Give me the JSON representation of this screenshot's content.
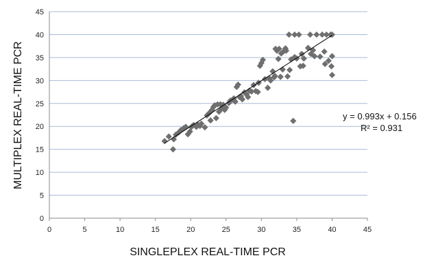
{
  "chart_data": {
    "type": "scatter",
    "title": "",
    "xlabel": "SINGLEPLEX REAL-TIME PCR",
    "ylabel": "MULTIPLEX REAL-TIME PCR",
    "xlim": [
      0,
      45
    ],
    "ylim": [
      0,
      45
    ],
    "x_ticks": [
      0,
      5,
      10,
      15,
      20,
      25,
      30,
      35,
      40,
      45
    ],
    "y_ticks": [
      0,
      5,
      10,
      15,
      20,
      25,
      30,
      35,
      40,
      45
    ],
    "grid": "horizontal",
    "marker": "diamond",
    "colors": {
      "points": "#6f6f6f",
      "trendline": "#000000",
      "grid": "#a9bcd6",
      "axis": "#8a8a8a"
    },
    "trendline": {
      "type": "linear",
      "slope": 0.993,
      "intercept": 0.156,
      "x_range": [
        16.3,
        40.0
      ]
    },
    "annotations": {
      "equation": "y = 0.993x + 0.156",
      "r_squared": "R² = 0.931"
    },
    "series": [
      {
        "points": [
          [
            16.3,
            16.8
          ],
          [
            16.9,
            17.8
          ],
          [
            17.5,
            15.0
          ],
          [
            17.6,
            17.2
          ],
          [
            17.9,
            18.2
          ],
          [
            18.3,
            18.7
          ],
          [
            18.6,
            19.2
          ],
          [
            19.0,
            19.6
          ],
          [
            19.3,
            19.9
          ],
          [
            19.6,
            18.3
          ],
          [
            19.9,
            18.9
          ],
          [
            20.1,
            19.9
          ],
          [
            20.4,
            20.3
          ],
          [
            20.8,
            19.9
          ],
          [
            21.0,
            20.4
          ],
          [
            21.3,
            20.1
          ],
          [
            21.5,
            20.6
          ],
          [
            22.0,
            19.8
          ],
          [
            22.3,
            22.4
          ],
          [
            22.6,
            22.9
          ],
          [
            22.8,
            21.3
          ],
          [
            23.0,
            23.6
          ],
          [
            23.2,
            24.2
          ],
          [
            23.4,
            24.6
          ],
          [
            23.6,
            21.8
          ],
          [
            23.8,
            24.8
          ],
          [
            24.0,
            23.2
          ],
          [
            24.2,
            24.8
          ],
          [
            24.4,
            23.9
          ],
          [
            24.6,
            24.7
          ],
          [
            24.8,
            23.6
          ],
          [
            25.0,
            24.1
          ],
          [
            25.4,
            25.1
          ],
          [
            25.6,
            25.6
          ],
          [
            25.9,
            25.8
          ],
          [
            26.1,
            26.1
          ],
          [
            26.3,
            25.4
          ],
          [
            26.5,
            28.6
          ],
          [
            26.7,
            29.1
          ],
          [
            26.9,
            26.4
          ],
          [
            27.1,
            26.6
          ],
          [
            27.3,
            25.9
          ],
          [
            27.6,
            27.4
          ],
          [
            27.9,
            27.0
          ],
          [
            28.1,
            26.4
          ],
          [
            28.3,
            27.8
          ],
          [
            28.6,
            27.6
          ],
          [
            28.9,
            29.0
          ],
          [
            29.2,
            27.7
          ],
          [
            29.5,
            27.5
          ],
          [
            29.6,
            29.5
          ],
          [
            29.8,
            33.2
          ],
          [
            30.0,
            33.8
          ],
          [
            30.2,
            34.5
          ],
          [
            30.5,
            30.3
          ],
          [
            30.9,
            28.4
          ],
          [
            31.1,
            30.5
          ],
          [
            31.3,
            30.0
          ],
          [
            31.6,
            32.0
          ],
          [
            31.8,
            30.7
          ],
          [
            31.9,
            31.0
          ],
          [
            32.0,
            36.9
          ],
          [
            32.2,
            36.5
          ],
          [
            32.4,
            34.7
          ],
          [
            32.5,
            36.9
          ],
          [
            32.7,
            30.8
          ],
          [
            32.8,
            35.9
          ],
          [
            33.0,
            32.4
          ],
          [
            33.1,
            36.3
          ],
          [
            33.4,
            37.0
          ],
          [
            33.5,
            36.5
          ],
          [
            33.7,
            30.9
          ],
          [
            33.9,
            40.0
          ],
          [
            34.0,
            32.3
          ],
          [
            34.2,
            34.6
          ],
          [
            34.5,
            21.2
          ],
          [
            34.7,
            40.0
          ],
          [
            34.7,
            35.1
          ],
          [
            35.0,
            34.8
          ],
          [
            35.3,
            40.0
          ],
          [
            35.5,
            33.1
          ],
          [
            35.7,
            35.8
          ],
          [
            35.9,
            33.2
          ],
          [
            36.0,
            34.8
          ],
          [
            36.6,
            37.1
          ],
          [
            36.9,
            40.0
          ],
          [
            37.0,
            35.8
          ],
          [
            37.3,
            36.6
          ],
          [
            37.5,
            35.3
          ],
          [
            37.8,
            40.0
          ],
          [
            38.3,
            35.2
          ],
          [
            38.6,
            40.0
          ],
          [
            38.9,
            36.3
          ],
          [
            39.0,
            33.6
          ],
          [
            39.2,
            40.0
          ],
          [
            39.5,
            34.3
          ],
          [
            39.8,
            40.0
          ],
          [
            39.9,
            33.1
          ],
          [
            40.0,
            31.2
          ],
          [
            40.0,
            35.3
          ],
          [
            40.0,
            40.0
          ]
        ]
      }
    ]
  }
}
